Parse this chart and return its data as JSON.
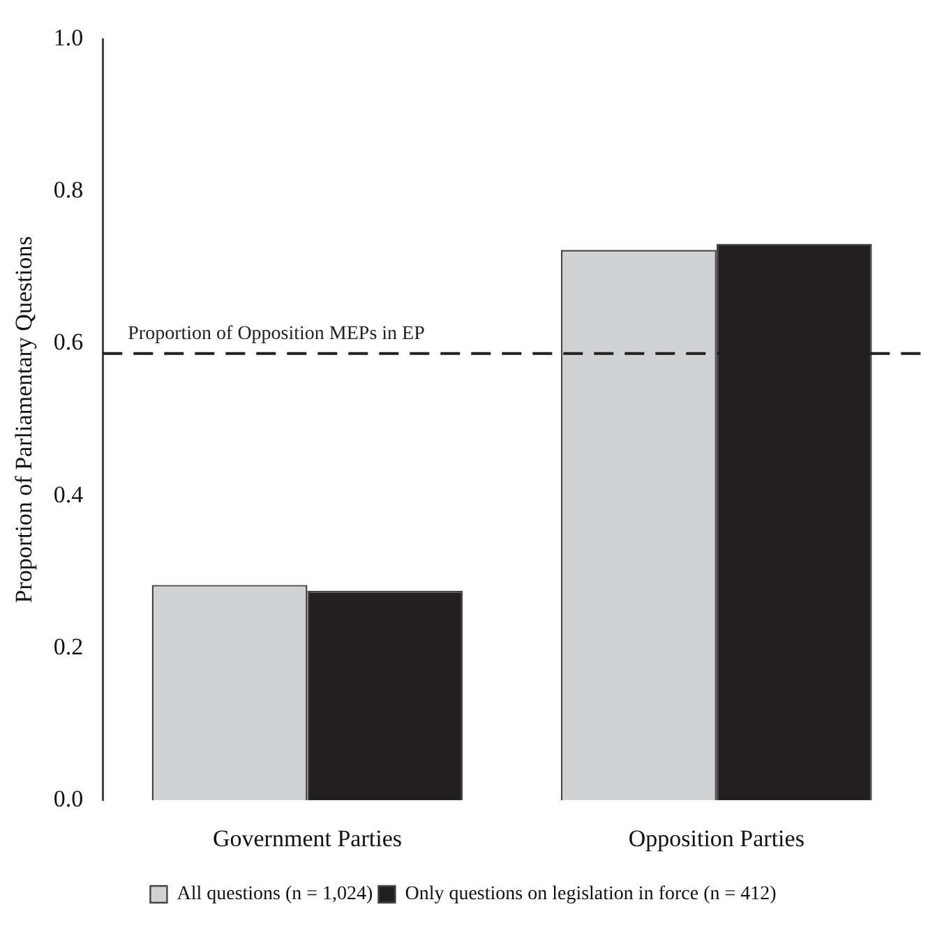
{
  "chart_data": {
    "type": "bar",
    "ylabel": "Proportion of Parliamentary Questions",
    "categories": [
      "Government Parties",
      "Opposition Parties"
    ],
    "series": [
      {
        "name": "All questions (n = 1,024)",
        "color": "#d1d2d4",
        "values": [
          0.283,
          0.723
        ]
      },
      {
        "name": "Only questions on legislation in force (n = 412)",
        "color": "#231f20",
        "values": [
          0.275,
          0.731
        ]
      }
    ],
    "ylim": [
      0,
      1
    ],
    "yticks": [
      {
        "value": 0,
        "label": "0.0"
      },
      {
        "value": 0.2,
        "label": "0.2"
      },
      {
        "value": 0.4,
        "label": "0.4"
      },
      {
        "value": 0.6,
        "label": "0.6"
      },
      {
        "value": 0.8,
        "label": "0.8"
      },
      {
        "value": 1,
        "label": "1.0"
      }
    ],
    "ref_lines": [
      {
        "axis": "y",
        "value": 0.587,
        "label": "Proportion of Opposition MEPs in EP",
        "color": "#231f20",
        "line_style": "dashed"
      }
    ],
    "grid": false,
    "legend": "bottom"
  }
}
